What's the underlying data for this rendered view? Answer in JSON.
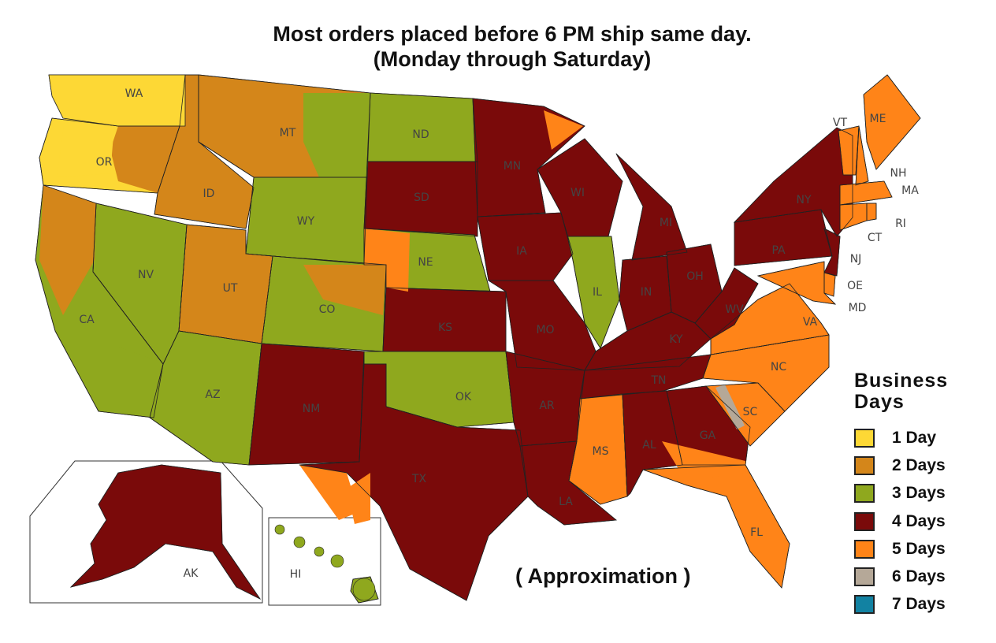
{
  "title_line1": "Most orders placed before 6 PM ship same day.",
  "title_line2": "(Monday through Saturday)",
  "note": "( Approximation )",
  "legend": {
    "title_line1": "Business",
    "title_line2": "Days",
    "items": [
      {
        "days": 1,
        "label": "1 Day",
        "color": "#fdd835"
      },
      {
        "days": 2,
        "label": "2 Days",
        "color": "#d4861a"
      },
      {
        "days": 3,
        "label": "3 Days",
        "color": "#8fa81e"
      },
      {
        "days": 4,
        "label": "4 Days",
        "color": "#7a0a0a"
      },
      {
        "days": 5,
        "label": "5 Days",
        "color": "#ff8418"
      },
      {
        "days": 6,
        "label": "6 Days",
        "color": "#b5a898"
      },
      {
        "days": 7,
        "label": "7 Days",
        "color": "#1282a2"
      }
    ]
  },
  "states": [
    {
      "abbr": "WA",
      "days": 1
    },
    {
      "abbr": "OR",
      "days": 1
    },
    {
      "abbr": "ID",
      "days": 2
    },
    {
      "abbr": "MT",
      "days": 2
    },
    {
      "abbr": "WY",
      "days": 3
    },
    {
      "abbr": "ND",
      "days": 3
    },
    {
      "abbr": "SD",
      "days": 4
    },
    {
      "abbr": "NE",
      "days": 3
    },
    {
      "abbr": "CO",
      "days": 3
    },
    {
      "abbr": "UT",
      "days": 2
    },
    {
      "abbr": "NV",
      "days": 3
    },
    {
      "abbr": "CA",
      "days": 3
    },
    {
      "abbr": "AZ",
      "days": 3
    },
    {
      "abbr": "NM",
      "days": 4
    },
    {
      "abbr": "KS",
      "days": 4
    },
    {
      "abbr": "OK",
      "days": 3
    },
    {
      "abbr": "TX",
      "days": 4
    },
    {
      "abbr": "MN",
      "days": 4
    },
    {
      "abbr": "IA",
      "days": 4
    },
    {
      "abbr": "MO",
      "days": 4
    },
    {
      "abbr": "AR",
      "days": 4
    },
    {
      "abbr": "LA",
      "days": 4
    },
    {
      "abbr": "WI",
      "days": 4
    },
    {
      "abbr": "IL",
      "days": 3
    },
    {
      "abbr": "MI",
      "days": 4
    },
    {
      "abbr": "IN",
      "days": 4
    },
    {
      "abbr": "OH",
      "days": 4
    },
    {
      "abbr": "KY",
      "days": 4
    },
    {
      "abbr": "TN",
      "days": 4
    },
    {
      "abbr": "MS",
      "days": 5
    },
    {
      "abbr": "AL",
      "days": 4
    },
    {
      "abbr": "GA",
      "days": 4
    },
    {
      "abbr": "FL",
      "days": 5
    },
    {
      "abbr": "SC",
      "days": 5
    },
    {
      "abbr": "NC",
      "days": 5
    },
    {
      "abbr": "VA",
      "days": 5
    },
    {
      "abbr": "WV",
      "days": 4
    },
    {
      "abbr": "PA",
      "days": 4
    },
    {
      "abbr": "NY",
      "days": 4
    },
    {
      "abbr": "NJ",
      "days": 4
    },
    {
      "abbr": "OE",
      "days": 5
    },
    {
      "abbr": "MD",
      "days": 5
    },
    {
      "abbr": "VT",
      "days": 5
    },
    {
      "abbr": "NH",
      "days": 5
    },
    {
      "abbr": "ME",
      "days": 5
    },
    {
      "abbr": "MA",
      "days": 5
    },
    {
      "abbr": "CT",
      "days": 5
    },
    {
      "abbr": "RI",
      "days": 5
    },
    {
      "abbr": "AK",
      "days": 4
    },
    {
      "abbr": "HI",
      "days": 3
    }
  ]
}
